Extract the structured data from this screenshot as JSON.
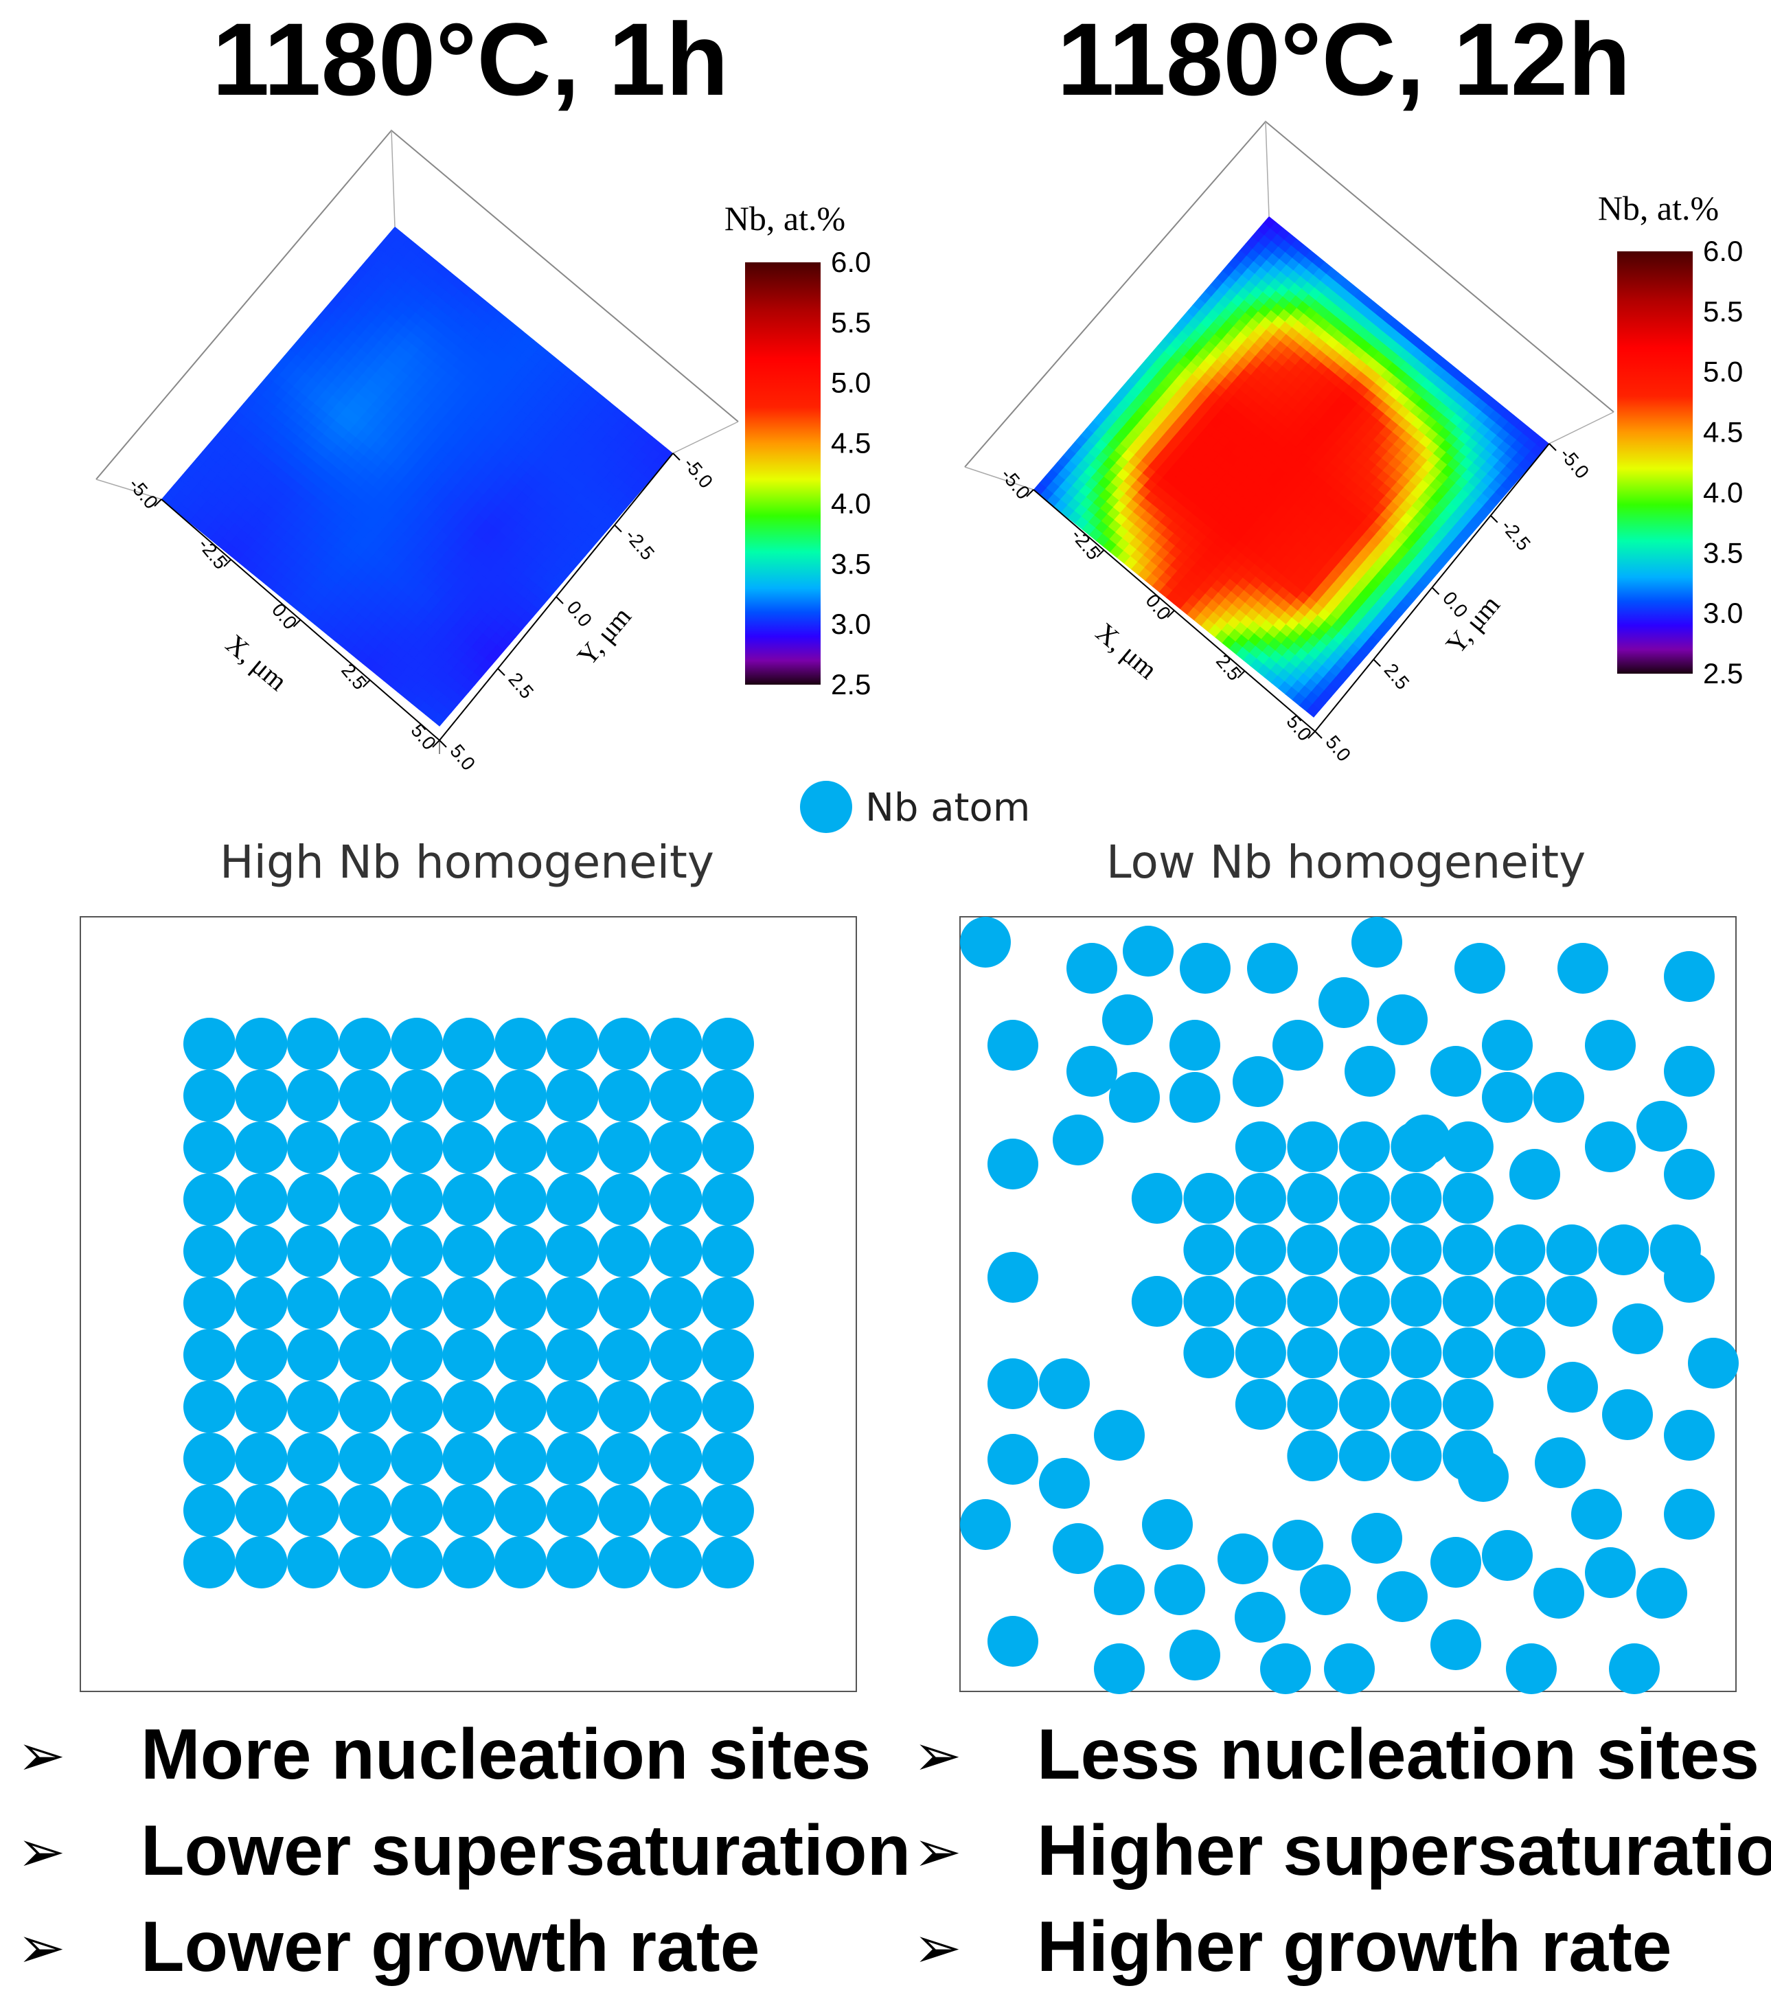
{
  "titles": {
    "left": "1180°C, 1h",
    "right": "1180°C, 12h"
  },
  "colorbar": {
    "title": "Nb, at.%",
    "ticks": [
      "6.0",
      "5.5",
      "5.0",
      "4.5",
      "4.0",
      "3.5",
      "3.0",
      "2.5"
    ],
    "range": [
      2.5,
      6.0
    ],
    "stops": [
      {
        "v": 2.5,
        "c": "#1a0010"
      },
      {
        "v": 2.7,
        "c": "#7a00aa"
      },
      {
        "v": 2.9,
        "c": "#2b00ff"
      },
      {
        "v": 3.1,
        "c": "#0050ff"
      },
      {
        "v": 3.3,
        "c": "#00b0ff"
      },
      {
        "v": 3.6,
        "c": "#00ffaa"
      },
      {
        "v": 3.9,
        "c": "#33ff00"
      },
      {
        "v": 4.2,
        "c": "#e6ff00"
      },
      {
        "v": 4.5,
        "c": "#ff9900"
      },
      {
        "v": 4.8,
        "c": "#ff2200"
      },
      {
        "v": 5.2,
        "c": "#ff0000"
      },
      {
        "v": 5.6,
        "c": "#b00000"
      },
      {
        "v": 6.0,
        "c": "#4a0000"
      }
    ]
  },
  "axes": {
    "x_label": "X, μm",
    "y_label": "Y, μm",
    "x_ticks": [
      "-5.0",
      "-2.5",
      "0.0",
      "2.5",
      "5.0"
    ],
    "y_ticks": [
      "-5.0",
      "-2.5",
      "0.0",
      "2.5",
      "5.0"
    ]
  },
  "maps": {
    "left": {
      "grid": [
        [
          3.05,
          3.05,
          3.1,
          3.05,
          3.0
        ],
        [
          3.05,
          3.15,
          3.1,
          3.05,
          3.05
        ],
        [
          3.1,
          3.2,
          3.1,
          3.0,
          3.05
        ],
        [
          3.05,
          3.05,
          3.1,
          3.05,
          2.95
        ],
        [
          3.05,
          3.0,
          3.05,
          3.0,
          3.05
        ]
      ]
    },
    "right": {
      "grid": [
        [
          2.9,
          3.1,
          3.0,
          3.0,
          3.0
        ],
        [
          3.1,
          4.6,
          5.1,
          4.4,
          3.1
        ],
        [
          3.4,
          5.1,
          5.1,
          5.0,
          3.1
        ],
        [
          3.2,
          5.1,
          5.1,
          4.9,
          3.0
        ],
        [
          3.0,
          3.8,
          4.9,
          3.5,
          3.0
        ]
      ]
    }
  },
  "colors": {
    "atom": "#00aeef",
    "map_blue": "#1a3ff0"
  },
  "legend": {
    "label": "Nb atom"
  },
  "panels": {
    "left_label": "High Nb homogeneity",
    "right_label": "Low Nb homogeneity"
  },
  "bullets": {
    "left": [
      "More nucleation sites",
      "Lower supersaturation",
      "Lower growth rate"
    ],
    "right": [
      "Less nucleation sites",
      "Higher supersaturation",
      "Higher growth rate"
    ]
  },
  "bullet_symbol": "➢"
}
